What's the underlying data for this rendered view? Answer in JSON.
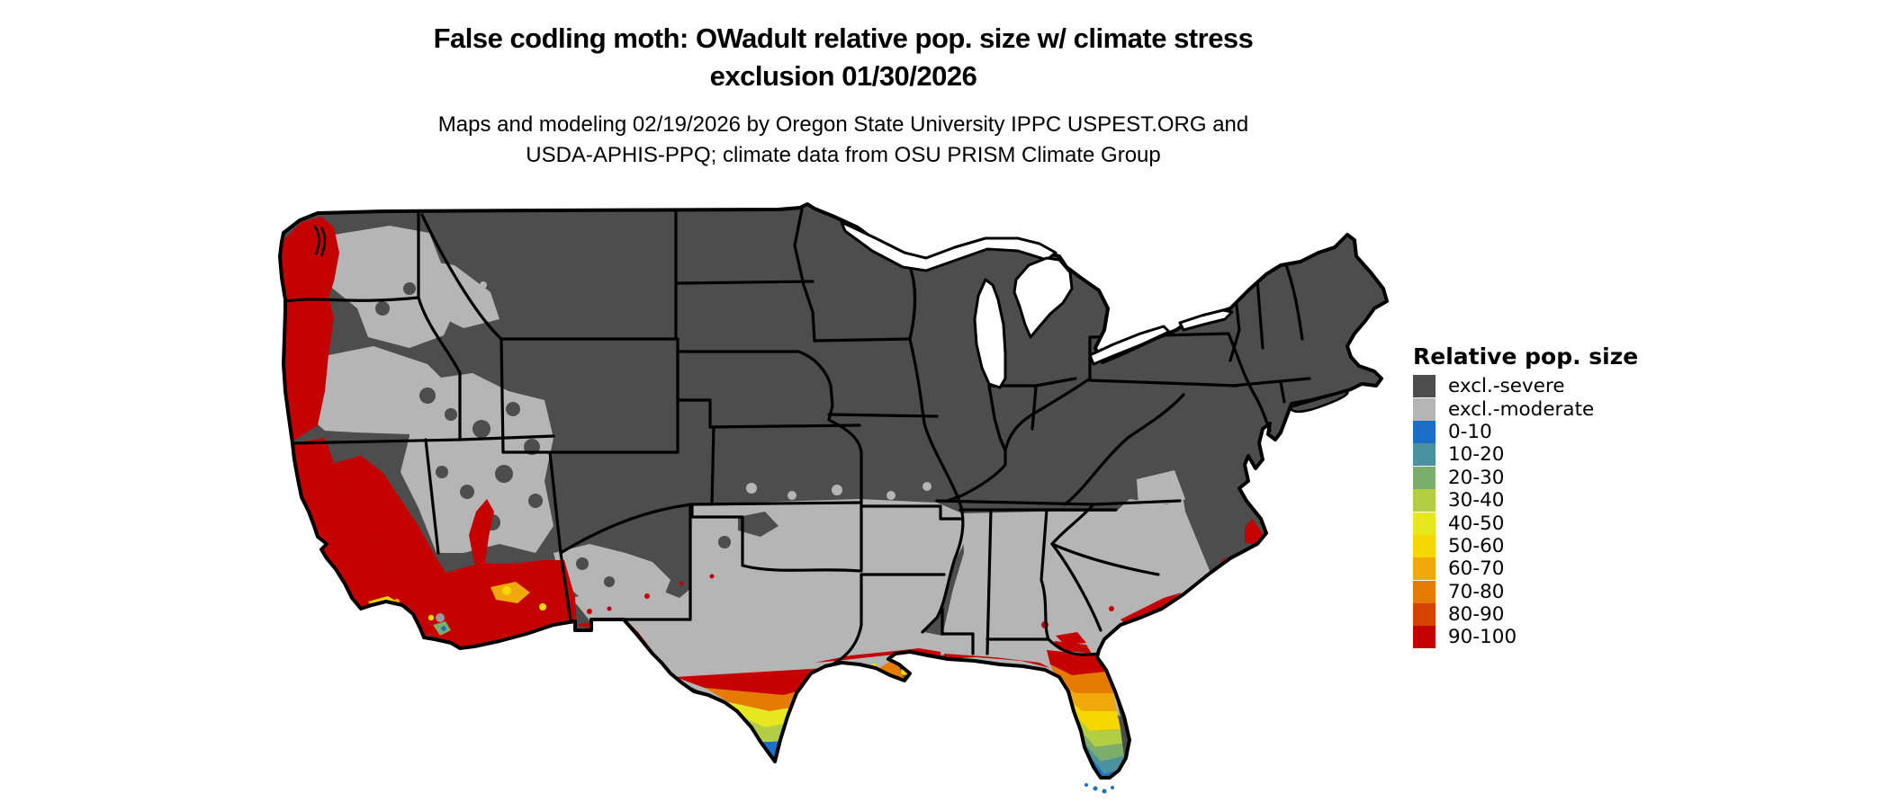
{
  "title": {
    "line1": "False codling moth: OWadult relative pop. size w/ climate stress",
    "line2": "exclusion 01/30/2026"
  },
  "subtitle": {
    "line1": "Maps and modeling 02/19/2026 by Oregon State University IPPC USPEST.ORG and",
    "line2": "USDA-APHIS-PPQ; climate data from OSU PRISM Climate Group"
  },
  "palette": {
    "severe": "#4d4d4d",
    "moderate": "#b5b5b5",
    "b010": "#1c6fc6",
    "b1020": "#4b92a0",
    "b2030": "#7bad6b",
    "b3040": "#b4ce43",
    "b4050": "#e6e71f",
    "b5060": "#f6d800",
    "b6070": "#f0a80b",
    "b7080": "#e67b04",
    "b8090": "#d64202",
    "b90100": "#c60101",
    "border": "#000000",
    "water": "#ffffff"
  },
  "legend": {
    "title": "Relative pop. size",
    "entries": [
      {
        "label": "excl.-severe",
        "color_key": "severe"
      },
      {
        "label": "excl.-moderate",
        "color_key": "moderate"
      },
      {
        "label": "0-10",
        "color_key": "b010"
      },
      {
        "label": "10-20",
        "color_key": "b1020"
      },
      {
        "label": "20-30",
        "color_key": "b2030"
      },
      {
        "label": "30-40",
        "color_key": "b3040"
      },
      {
        "label": "40-50",
        "color_key": "b4050"
      },
      {
        "label": "50-60",
        "color_key": "b5060"
      },
      {
        "label": "60-70",
        "color_key": "b6070"
      },
      {
        "label": "70-80",
        "color_key": "b7080"
      },
      {
        "label": "80-90",
        "color_key": "b8090"
      },
      {
        "label": "90-100",
        "color_key": "b90100"
      }
    ]
  },
  "map": {
    "region_label": "Contiguous United States choropleth of relative population size"
  }
}
